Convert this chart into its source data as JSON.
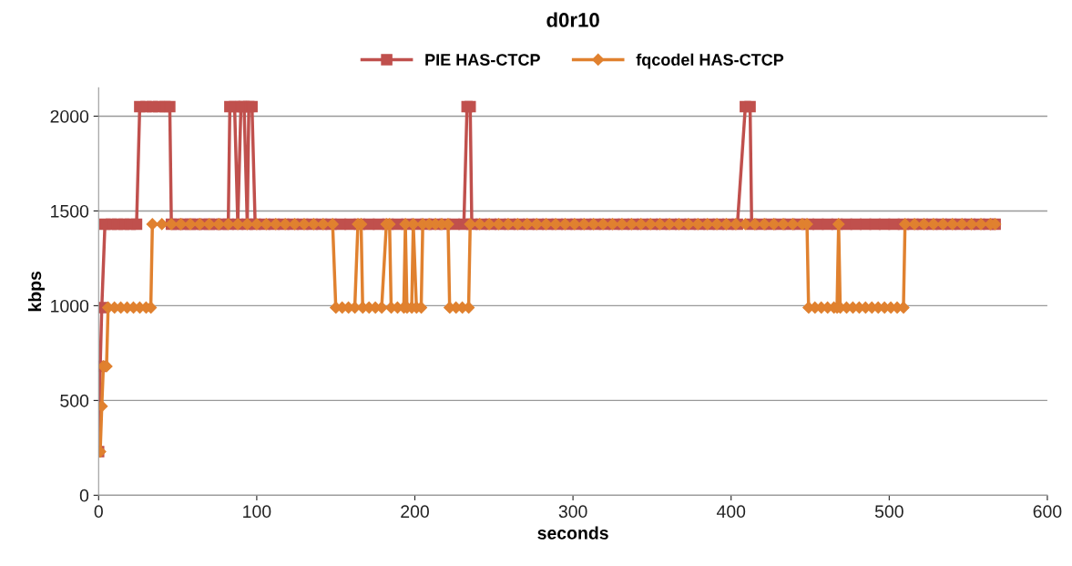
{
  "chart_data": {
    "type": "line",
    "title": "d0r10",
    "xlabel": "seconds",
    "ylabel": "kbps",
    "xlim": [
      0,
      600
    ],
    "xticks": [
      0,
      100,
      200,
      300,
      400,
      500,
      600
    ],
    "ylim": [
      0,
      2150
    ],
    "yticks": [
      0,
      500,
      1000,
      1500,
      2000
    ],
    "grid": "y",
    "legend": "top",
    "series": [
      {
        "name": "PIE HAS-CTCP",
        "color": "#c0504d",
        "marker": "square",
        "x": [
          0,
          1,
          2,
          4,
          8,
          12,
          16,
          20,
          24,
          26,
          30,
          34,
          38,
          42,
          45,
          46,
          50,
          54,
          58,
          62,
          66,
          70,
          74,
          78,
          82,
          83,
          86,
          88,
          90,
          92,
          94,
          95,
          97,
          99,
          105,
          111,
          117,
          123,
          129,
          135,
          141,
          147,
          153,
          159,
          165,
          171,
          177,
          183,
          189,
          195,
          201,
          207,
          213,
          219,
          225,
          231,
          233,
          235,
          236,
          242,
          248,
          254,
          260,
          266,
          272,
          278,
          284,
          290,
          296,
          302,
          308,
          314,
          320,
          326,
          332,
          338,
          344,
          350,
          356,
          362,
          368,
          374,
          380,
          386,
          392,
          398,
          404,
          409,
          412,
          413,
          419,
          425,
          431,
          437,
          443,
          449,
          455,
          461,
          467,
          473,
          479,
          485,
          491,
          497,
          503,
          509,
          515,
          521,
          527,
          533,
          539,
          545,
          551,
          557,
          563,
          567
        ],
        "values": [
          230,
          680,
          990,
          1430,
          1430,
          1430,
          1430,
          1430,
          1430,
          2050,
          2050,
          2050,
          2050,
          2050,
          2050,
          1430,
          1430,
          1430,
          1430,
          1430,
          1430,
          1430,
          1430,
          1430,
          1430,
          2050,
          2050,
          1430,
          2050,
          2050,
          1430,
          2050,
          2050,
          1430,
          1430,
          1430,
          1430,
          1430,
          1430,
          1430,
          1430,
          1430,
          1430,
          1430,
          1430,
          1430,
          1430,
          1430,
          1430,
          1430,
          1430,
          1430,
          1430,
          1430,
          1430,
          1430,
          2050,
          2050,
          1430,
          1430,
          1430,
          1430,
          1430,
          1430,
          1430,
          1430,
          1430,
          1430,
          1430,
          1430,
          1430,
          1430,
          1430,
          1430,
          1430,
          1430,
          1430,
          1430,
          1430,
          1430,
          1430,
          1430,
          1430,
          1430,
          1430,
          1430,
          1430,
          2050,
          2050,
          1430,
          1430,
          1430,
          1430,
          1430,
          1430,
          1430,
          1430,
          1430,
          1430,
          1430,
          1430,
          1430,
          1430,
          1430,
          1430,
          1430,
          1430,
          1430,
          1430,
          1430,
          1430,
          1430,
          1430,
          1430,
          1430,
          1430
        ]
      },
      {
        "name": "fqcodel HAS-CTCP",
        "color": "#e0812f",
        "marker": "diamond",
        "x": [
          1,
          2,
          3,
          5,
          6,
          10,
          14,
          18,
          22,
          26,
          30,
          33,
          34,
          40,
          46,
          52,
          58,
          64,
          70,
          76,
          82,
          88,
          94,
          100,
          106,
          112,
          118,
          124,
          130,
          136,
          142,
          148,
          150,
          154,
          158,
          162,
          164,
          166,
          167,
          171,
          175,
          179,
          182,
          184,
          185,
          189,
          193,
          194,
          195,
          198,
          199,
          201,
          204,
          205,
          209,
          213,
          217,
          221,
          222,
          226,
          230,
          234,
          235,
          241,
          247,
          253,
          259,
          265,
          271,
          277,
          283,
          289,
          295,
          301,
          307,
          313,
          319,
          325,
          331,
          337,
          343,
          349,
          355,
          361,
          367,
          373,
          379,
          385,
          391,
          397,
          403,
          409,
          415,
          421,
          427,
          433,
          439,
          445,
          448,
          449,
          453,
          457,
          461,
          465,
          467,
          468,
          469,
          473,
          477,
          481,
          485,
          489,
          493,
          497,
          501,
          505,
          509,
          510,
          516,
          522,
          528,
          534,
          540,
          546,
          552,
          558,
          564,
          567
        ],
        "values": [
          230,
          470,
          680,
          680,
          990,
          990,
          990,
          990,
          990,
          990,
          990,
          990,
          1430,
          1430,
          1430,
          1430,
          1430,
          1430,
          1430,
          1430,
          1430,
          1430,
          1430,
          1430,
          1430,
          1430,
          1430,
          1430,
          1430,
          1430,
          1430,
          1430,
          990,
          990,
          990,
          990,
          1430,
          1430,
          990,
          990,
          990,
          990,
          1430,
          1430,
          990,
          990,
          990,
          1430,
          990,
          990,
          1430,
          990,
          990,
          1430,
          1430,
          1430,
          1430,
          1430,
          990,
          990,
          990,
          990,
          1430,
          1430,
          1430,
          1430,
          1430,
          1430,
          1430,
          1430,
          1430,
          1430,
          1430,
          1430,
          1430,
          1430,
          1430,
          1430,
          1430,
          1430,
          1430,
          1430,
          1430,
          1430,
          1430,
          1430,
          1430,
          1430,
          1430,
          1430,
          1430,
          1430,
          1430,
          1430,
          1430,
          1430,
          1430,
          1430,
          1430,
          990,
          990,
          990,
          990,
          990,
          990,
          1430,
          990,
          990,
          990,
          990,
          990,
          990,
          990,
          990,
          990,
          990,
          990,
          1430,
          1430,
          1430,
          1430,
          1430,
          1430,
          1430,
          1430,
          1430,
          1430,
          1430
        ]
      }
    ]
  }
}
